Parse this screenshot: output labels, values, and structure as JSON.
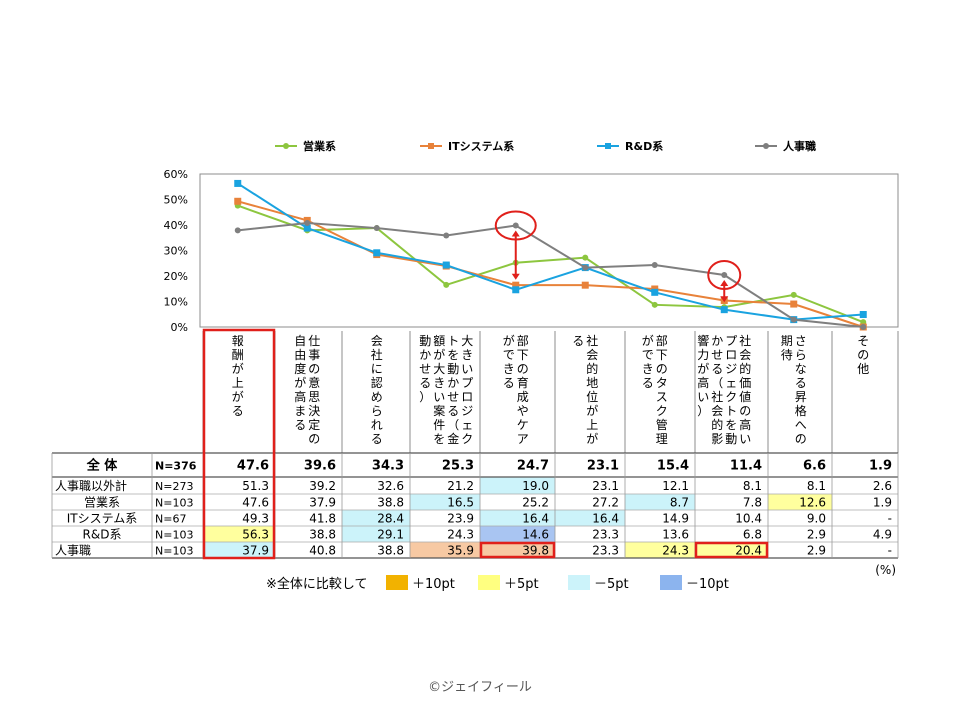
{
  "chart_data": {
    "type": "line",
    "y_unit_label": "(%)",
    "yticks": [
      "60%",
      "50%",
      "40%",
      "30%",
      "20%",
      "10%",
      "0%"
    ],
    "ylim": [
      0,
      60
    ],
    "grid": false,
    "legend_position": "top",
    "categories": [
      "報酬が上がる",
      "仕事の意思決定の自由度が高まる",
      "会社に認められる",
      "大きいプロジェクトを動かせる（金額が大きい案件を動かせる）",
      "部下の育成やケアができる",
      "社会的地位が上がる",
      "部下のタスク管理ができる",
      "社会的価値の高いプロジェクトを動かせる（社会的影響力が高い）",
      "さらなる昇格への期待",
      "その他"
    ],
    "category_columns": [
      [
        "報酬が上がる"
      ],
      [
        "仕事の意思決定の",
        "自由度が高まる"
      ],
      [
        "会社に認められる"
      ],
      [
        "大きいプロジェク",
        "トを動かせる（金",
        "額が大きい案件を",
        "動かせる）"
      ],
      [
        "部下の育成やケア",
        "ができる"
      ],
      [
        "社会的地位が上が",
        "る"
      ],
      [
        "部下のタスク管理",
        "ができる"
      ],
      [
        "社会的価値の高い",
        "プロジェクトを動",
        "かせる（社会的影",
        "響力が高い）"
      ],
      [
        "さらなる昇格への",
        "期待"
      ],
      [
        "その他"
      ]
    ],
    "series": [
      {
        "name": "営業系",
        "color": "#8DC63F",
        "marker": "circle",
        "values": [
          47.6,
          37.9,
          38.8,
          16.5,
          25.2,
          27.2,
          8.7,
          7.8,
          12.6,
          1.9
        ]
      },
      {
        "name": "ITシステム系",
        "color": "#E8823A",
        "marker": "square",
        "values": [
          49.3,
          41.8,
          28.4,
          23.9,
          16.4,
          16.4,
          14.9,
          10.4,
          9.0,
          0
        ]
      },
      {
        "name": "R&D系",
        "color": "#1AA3E0",
        "marker": "square",
        "values": [
          56.3,
          38.8,
          29.1,
          24.3,
          14.6,
          23.3,
          13.6,
          6.8,
          2.9,
          4.9
        ]
      },
      {
        "name": "人事職",
        "color": "#7F7F7F",
        "marker": "circle",
        "values": [
          37.9,
          40.8,
          38.8,
          35.9,
          39.8,
          23.3,
          24.3,
          20.4,
          2.9,
          0
        ]
      }
    ]
  },
  "table": {
    "rows": [
      {
        "label": "全 体",
        "n": "N=376",
        "values": [
          "47.6",
          "39.6",
          "34.3",
          "25.3",
          "24.7",
          "23.1",
          "15.4",
          "11.4",
          "6.6",
          "1.9"
        ],
        "bold": true
      },
      {
        "label": "人事職以外計",
        "n": "N=273",
        "values": [
          "51.3",
          "39.2",
          "32.6",
          "21.2",
          "19.0",
          "23.1",
          "12.1",
          "8.1",
          "8.1",
          "2.6"
        ]
      },
      {
        "label": "営業系",
        "n": "N=103",
        "values": [
          "47.6",
          "37.9",
          "38.8",
          "16.5",
          "25.2",
          "27.2",
          "8.7",
          "7.8",
          "12.6",
          "1.9"
        ]
      },
      {
        "label": "ITシステム系",
        "n": "N=67",
        "values": [
          "49.3",
          "41.8",
          "28.4",
          "23.9",
          "16.4",
          "16.4",
          "14.9",
          "10.4",
          "9.0",
          "-"
        ]
      },
      {
        "label": "R&D系",
        "n": "N=103",
        "values": [
          "56.3",
          "38.8",
          "29.1",
          "24.3",
          "14.6",
          "23.3",
          "13.6",
          "6.8",
          "2.9",
          "4.9"
        ]
      },
      {
        "label": "人事職",
        "n": "N=103",
        "values": [
          "37.9",
          "40.8",
          "38.8",
          "35.9",
          "39.8",
          "23.3",
          "24.3",
          "20.4",
          "2.9",
          "-"
        ]
      }
    ],
    "highlights": [
      {
        "row": 1,
        "col": 4,
        "level": "minus5"
      },
      {
        "row": 2,
        "col": 3,
        "level": "minus5"
      },
      {
        "row": 2,
        "col": 6,
        "level": "minus5"
      },
      {
        "row": 2,
        "col": 8,
        "level": "plus5"
      },
      {
        "row": 3,
        "col": 2,
        "level": "minus5"
      },
      {
        "row": 3,
        "col": 4,
        "level": "minus5"
      },
      {
        "row": 3,
        "col": 5,
        "level": "minus5"
      },
      {
        "row": 4,
        "col": 0,
        "level": "plus5"
      },
      {
        "row": 4,
        "col": 2,
        "level": "minus5"
      },
      {
        "row": 4,
        "col": 4,
        "level": "minus10"
      },
      {
        "row": 5,
        "col": 0,
        "level": "minus5"
      },
      {
        "row": 5,
        "col": 3,
        "level": "plus10"
      },
      {
        "row": 5,
        "col": 4,
        "level": "plus10"
      },
      {
        "row": 5,
        "col": 6,
        "level": "plus5"
      },
      {
        "row": 5,
        "col": 7,
        "level": "plus5"
      }
    ],
    "outlined_cells": [
      {
        "row": 5,
        "col": 4
      },
      {
        "row": 5,
        "col": 7
      }
    ],
    "outlined_column": 0,
    "unit": "(%)"
  },
  "highlight_colors": {
    "plus10": "#F7C9A3",
    "plus5": "#FFFF9E",
    "minus5": "#CCF3FA",
    "minus10": "#A9C5F2"
  },
  "accent_color": "#E0201B",
  "note": {
    "prefix": "※全体に比較して",
    "items": [
      {
        "label": "＋10pt",
        "color": "#F2B200"
      },
      {
        "label": "＋5pt",
        "color": "#FFFF80"
      },
      {
        "label": "－5pt",
        "color": "#CCF3FA"
      },
      {
        "label": "－10pt",
        "color": "#8CB4EE"
      }
    ]
  },
  "copyright": "©ジェイフィール"
}
